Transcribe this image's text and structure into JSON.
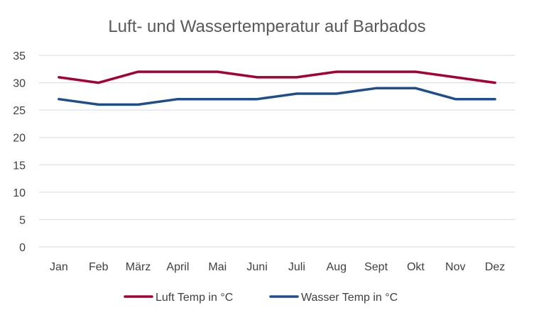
{
  "chart_data": {
    "type": "line",
    "title": "Luft- und Wassertemperatur auf Barbados",
    "categories": [
      "Jan",
      "Feb",
      "März",
      "April",
      "Mai",
      "Juni",
      "Juli",
      "Aug",
      "Sept",
      "Okt",
      "Nov",
      "Dez"
    ],
    "series": [
      {
        "name": "Luft Temp in °C",
        "color": "#A50034",
        "values": [
          31,
          30,
          32,
          32,
          32,
          31,
          31,
          32,
          32,
          32,
          31,
          30
        ]
      },
      {
        "name": "Wasser Temp in °C",
        "color": "#1F4E8C",
        "values": [
          27,
          26,
          26,
          27,
          27,
          27,
          28,
          28,
          29,
          29,
          27,
          27
        ]
      }
    ],
    "ylim": [
      0,
      35
    ],
    "yticks": [
      0,
      5,
      10,
      15,
      20,
      25,
      30,
      35
    ],
    "grid": true,
    "legend": "bottom"
  }
}
